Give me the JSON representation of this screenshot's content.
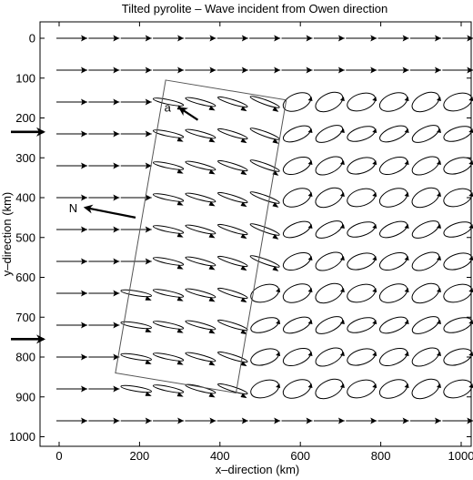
{
  "chart_data": {
    "type": "scatter",
    "title": "Tilted pyrolite – Wave incident from Owen direction",
    "xlabel": "x–direction (km)",
    "ylabel": "y–direction (km)",
    "xlim": [
      -10,
      1020
    ],
    "ylim": [
      1020,
      -20
    ],
    "y_axis_inverted": true,
    "x_ticks": [
      0,
      200,
      400,
      600,
      800,
      1000
    ],
    "y_ticks": [
      0,
      100,
      200,
      300,
      400,
      500,
      600,
      700,
      800,
      900,
      1000
    ],
    "grid": false,
    "glyph_rows_y": [
      0,
      80,
      160,
      240,
      320,
      400,
      480,
      560,
      640,
      720,
      800,
      880,
      960
    ],
    "glyph_cols_x": [
      0,
      80,
      160,
      240,
      320,
      400,
      480,
      560,
      640,
      720,
      800,
      880,
      960
    ],
    "tilted_region_vertices_km": [
      [
        265,
        105
      ],
      [
        565,
        155
      ],
      [
        440,
        890
      ],
      [
        140,
        840
      ]
    ],
    "incident_wave_arrows_y": [
      235,
      755
    ],
    "north_arrow": {
      "label": "N",
      "from": [
        190,
        450
      ],
      "to": [
        65,
        425
      ]
    },
    "point_marker": {
      "label": "a",
      "from": [
        345,
        205
      ],
      "to": [
        300,
        175
      ]
    }
  }
}
